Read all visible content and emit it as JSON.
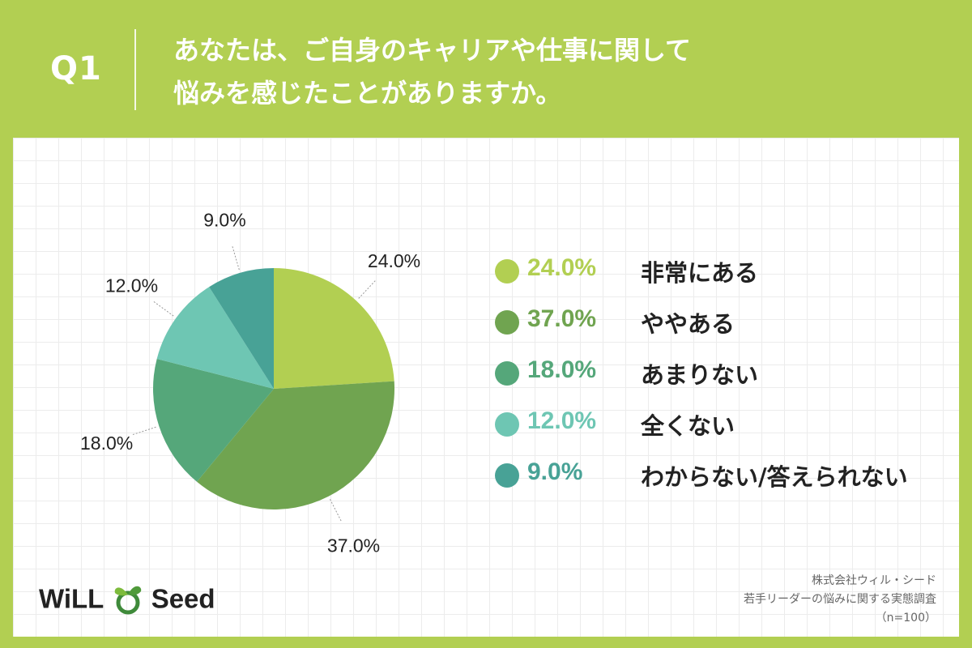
{
  "header": {
    "q_label": "Q1",
    "question_line1": "あなたは、ご自身のキャリアや仕事に関して",
    "question_line2": "悩みを感じたことがありますか。"
  },
  "chart_data": {
    "type": "pie",
    "categories": [
      "非常にある",
      "ややある",
      "あまりない",
      "全くない",
      "わからない/答えられない"
    ],
    "values": [
      24.0,
      37.0,
      18.0,
      12.0,
      9.0
    ],
    "value_labels": [
      "24.0%",
      "37.0%",
      "18.0%",
      "12.0%",
      "9.0%"
    ],
    "colors": [
      "#b2cf52",
      "#70a450",
      "#55a77a",
      "#6ec6b3",
      "#48a296"
    ],
    "start": "12 o'clock, clockwise",
    "legend": "right"
  },
  "legend": [
    {
      "value": "24.0%",
      "label": "非常にある",
      "color": "#b2cf52"
    },
    {
      "value": "37.0%",
      "label": "ややある",
      "color": "#70a450"
    },
    {
      "value": "18.0%",
      "label": "あまりない",
      "color": "#55a77a"
    },
    {
      "value": "12.0%",
      "label": "全くない",
      "color": "#6ec6b3"
    },
    {
      "value": "9.0%",
      "label": "わからない/答えられない",
      "color": "#48a296"
    }
  ],
  "logo": {
    "text_left": "WiLL",
    "text_right": "Seed"
  },
  "source": {
    "company": "株式会社ウィル・シード",
    "survey": "若手リーダーの悩みに関する実態調査",
    "sample": "（n=100）"
  }
}
